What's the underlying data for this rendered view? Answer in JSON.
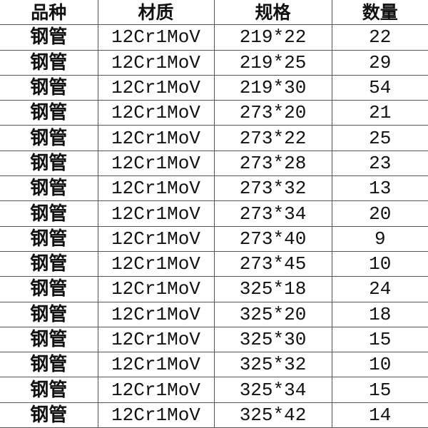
{
  "headers": [
    "品种",
    "材质",
    "规格",
    "数量"
  ],
  "rows": [
    [
      "钢管",
      "12Cr1MoV",
      "219*22",
      "22"
    ],
    [
      "钢管",
      "12Cr1MoV",
      "219*25",
      "29"
    ],
    [
      "钢管",
      "12Cr1MoV",
      "219*30",
      "54"
    ],
    [
      "钢管",
      "12Cr1MoV",
      "273*20",
      "21"
    ],
    [
      "钢管",
      "12Cr1MoV",
      "273*22",
      "25"
    ],
    [
      "钢管",
      "12Cr1MoV",
      "273*28",
      "23"
    ],
    [
      "钢管",
      "12Cr1MoV",
      "273*32",
      "13"
    ],
    [
      "钢管",
      "12Cr1MoV",
      "273*34",
      "20"
    ],
    [
      "钢管",
      "12Cr1MoV",
      "273*40",
      "9"
    ],
    [
      "钢管",
      "12Cr1MoV",
      "273*45",
      "10"
    ],
    [
      "钢管",
      "12Cr1MoV",
      "325*18",
      "24"
    ],
    [
      "钢管",
      "12Cr1MoV",
      "325*20",
      "18"
    ],
    [
      "钢管",
      "12Cr1MoV",
      "325*30",
      "15"
    ],
    [
      "钢管",
      "12Cr1MoV",
      "325*32",
      "10"
    ],
    [
      "钢管",
      "12Cr1MoV",
      "325*34",
      "15"
    ],
    [
      "钢管",
      "12Cr1MoV",
      "325*42",
      "14"
    ]
  ]
}
